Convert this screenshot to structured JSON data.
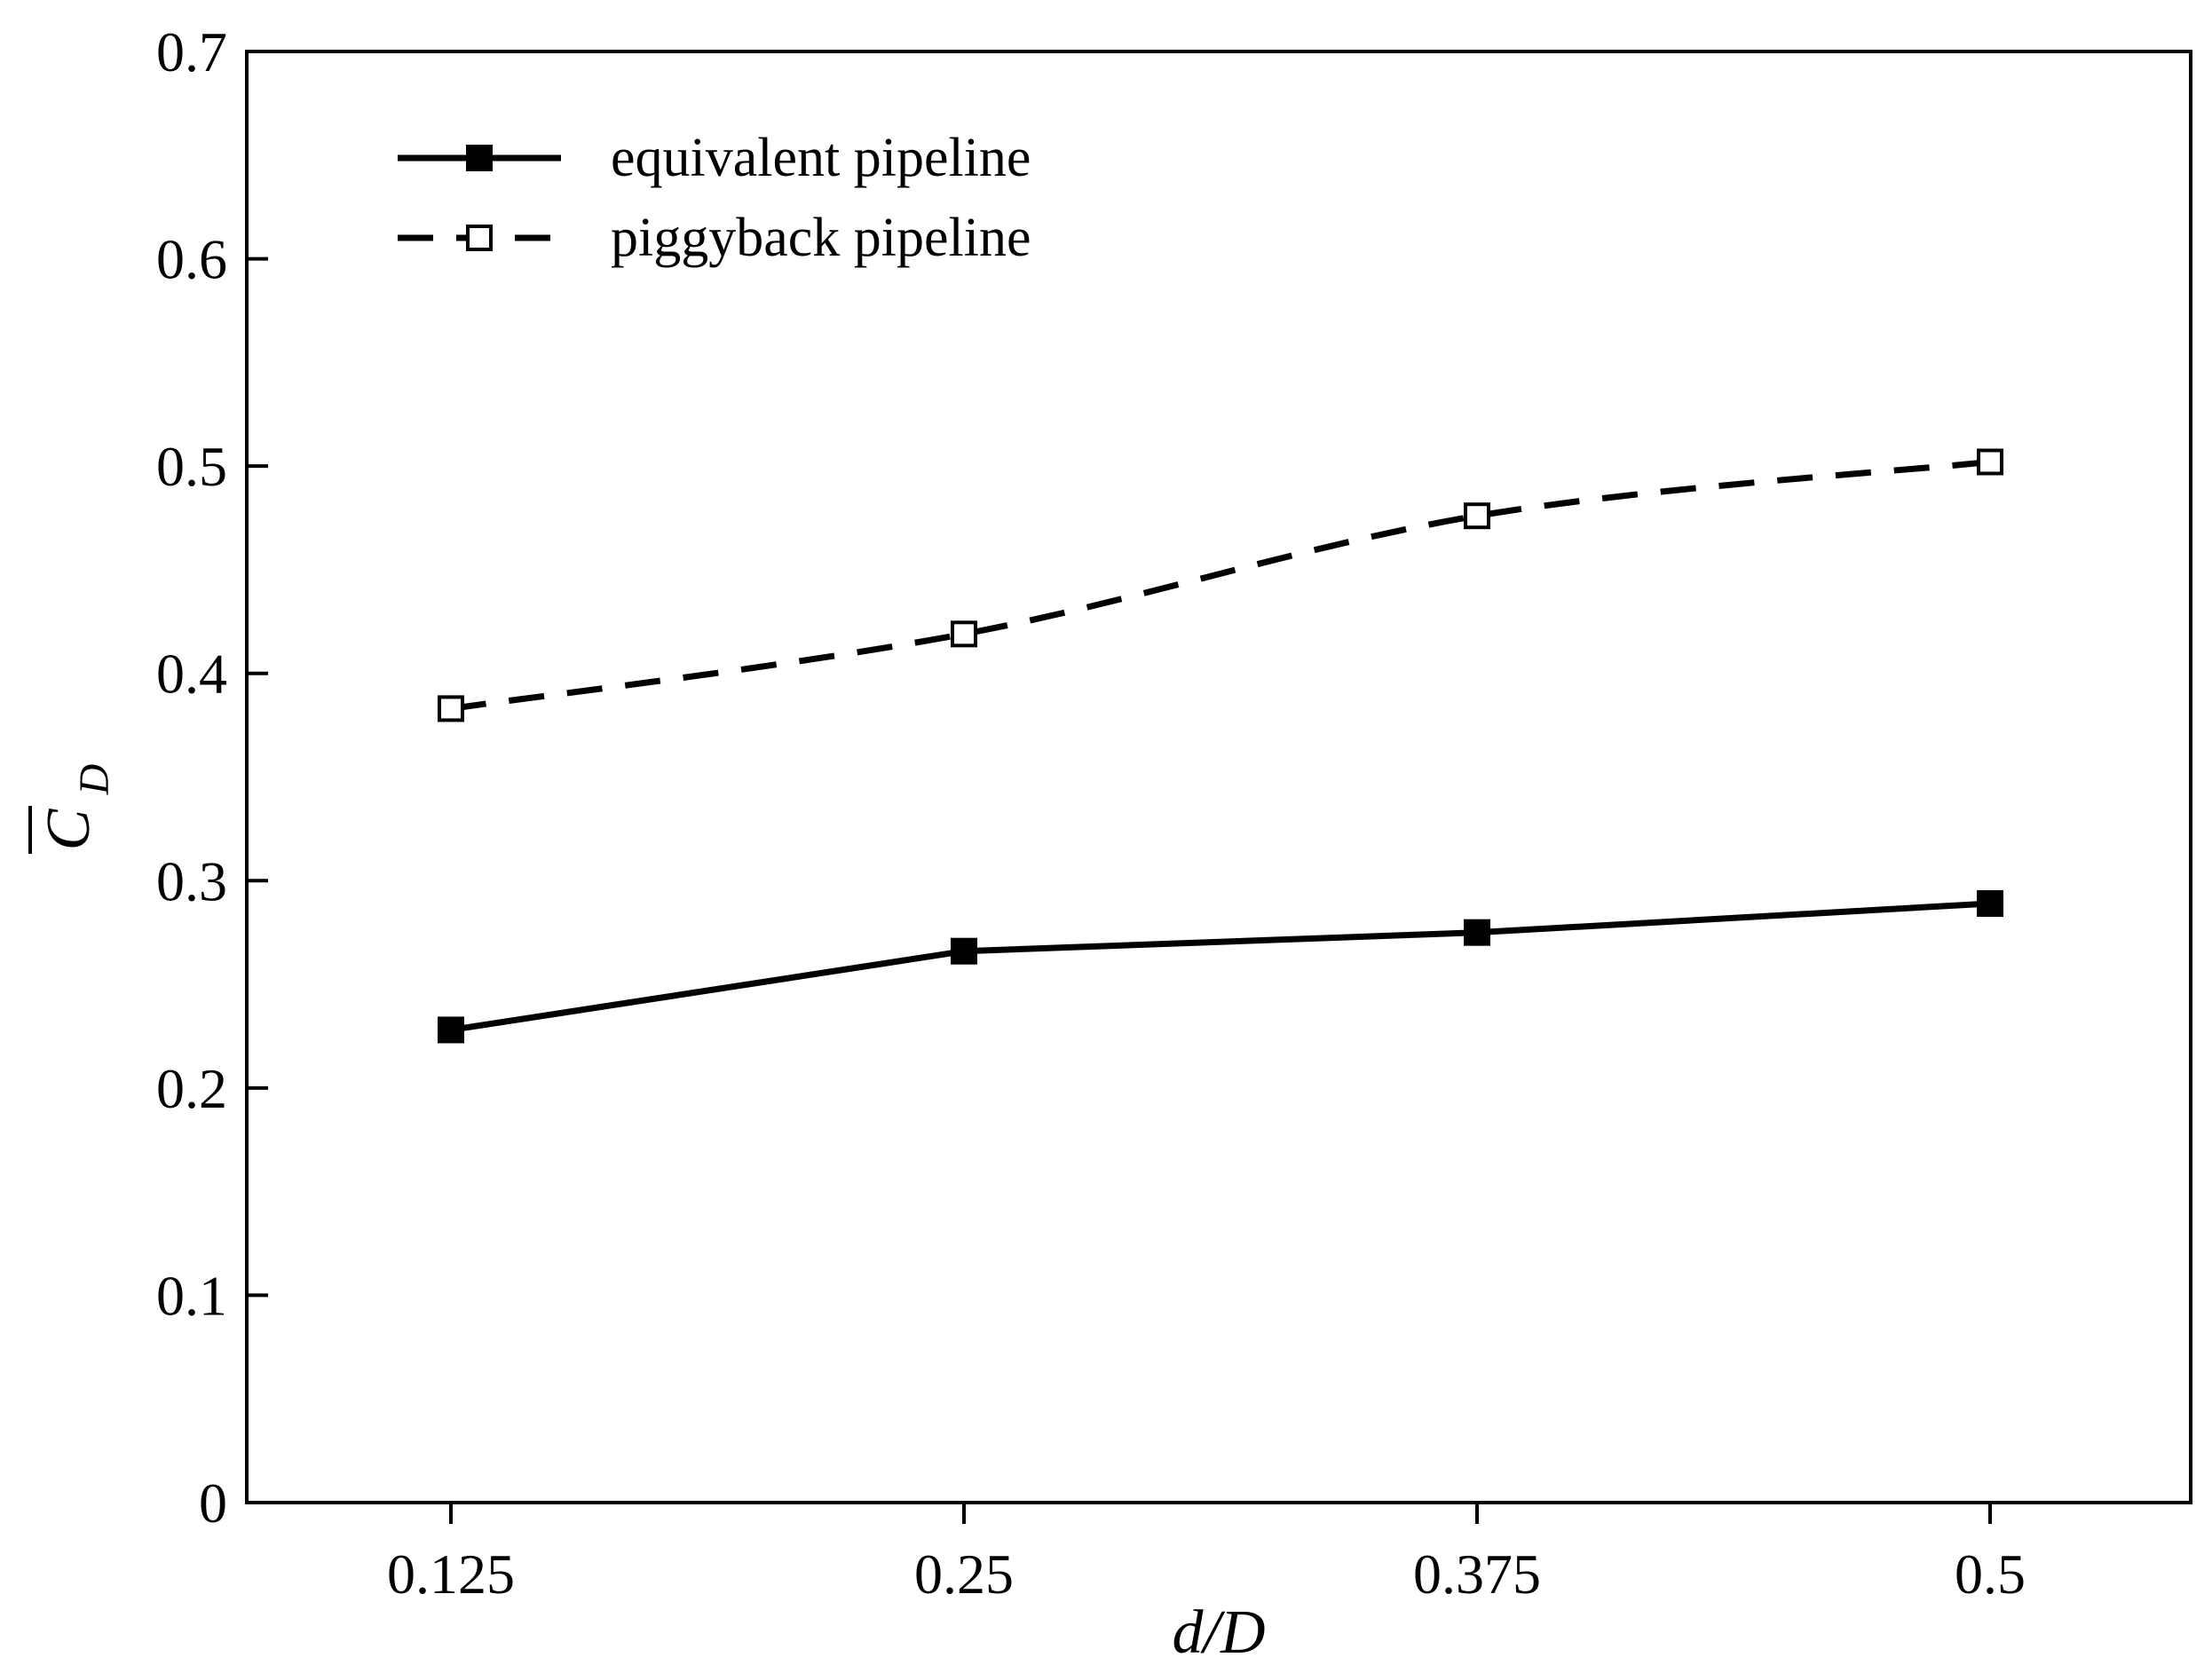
{
  "chart_data": {
    "type": "line",
    "x": [
      0.125,
      0.25,
      0.375,
      0.5
    ],
    "x_tick_labels": [
      "0.125",
      "0.25",
      "0.375",
      "0.5"
    ],
    "y_tick_labels": [
      "0",
      "0.1",
      "0.2",
      "0.3",
      "0.4",
      "0.5",
      "0.6",
      "0.7"
    ],
    "y_ticks": [
      0,
      0.1,
      0.2,
      0.3,
      0.4,
      0.5,
      0.6,
      0.7
    ],
    "ylim": [
      0,
      0.7
    ],
    "xlabel": "d/D",
    "ylabel": "C",
    "ylabel_subscript": "D",
    "legend_position": "top-left",
    "grid": false,
    "series": [
      {
        "name": "equivalent pipeline",
        "values": [
          0.228,
          0.266,
          0.275,
          0.289
        ],
        "line_style": "solid",
        "marker": "filled-square",
        "color": "#000000"
      },
      {
        "name": "piggyback pipeline",
        "values": [
          0.383,
          0.419,
          0.476,
          0.502
        ],
        "line_style": "dashed",
        "marker": "open-square",
        "color": "#000000"
      }
    ]
  }
}
